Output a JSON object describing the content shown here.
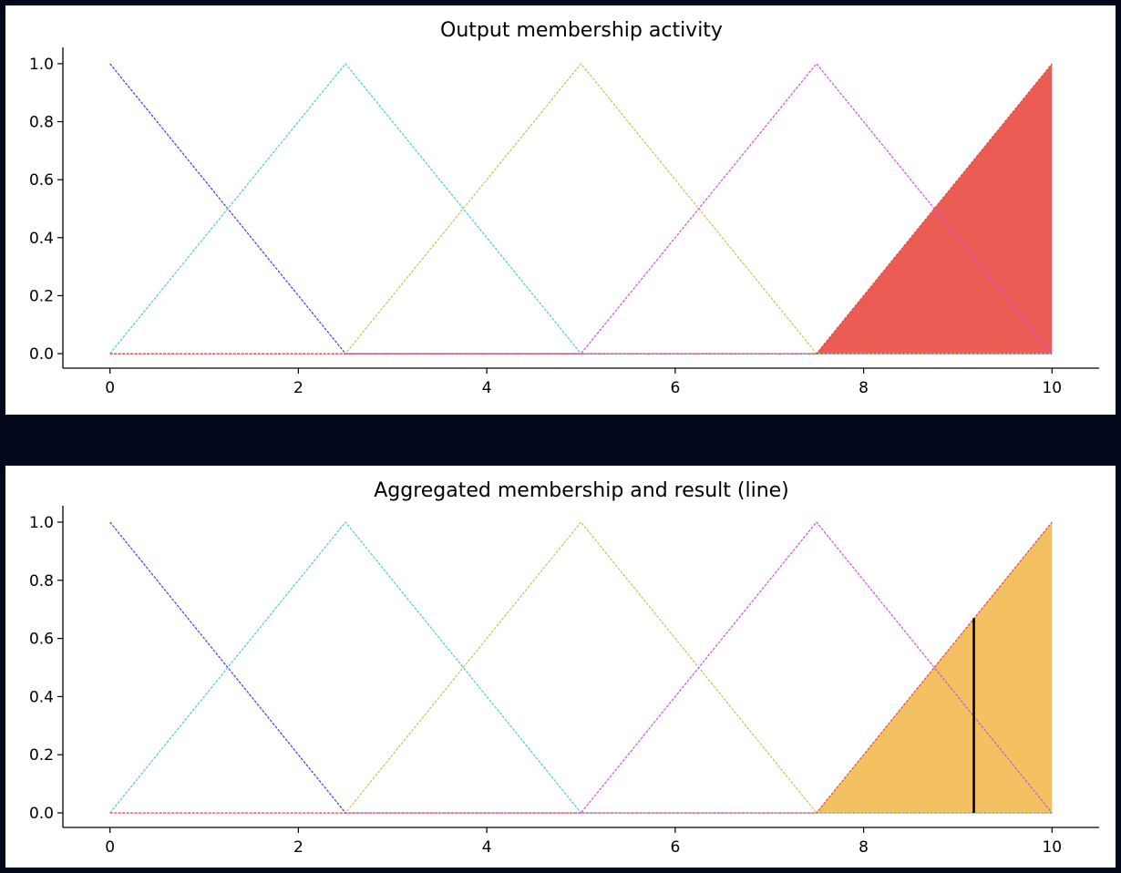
{
  "chart_data": [
    {
      "type": "line",
      "title": "Output membership activity",
      "xlabel": "",
      "ylabel": "",
      "xlim": [
        -0.5,
        10.5
      ],
      "ylim": [
        -0.05,
        1.05
      ],
      "xticks": [
        "0",
        "2",
        "4",
        "6",
        "8",
        "10"
      ],
      "yticks": [
        "0.0",
        "0.2",
        "0.4",
        "0.6",
        "0.8",
        "1.0"
      ],
      "grid": false,
      "series": [
        {
          "color": "#3b3bff",
          "dash": "dashed",
          "x": [
            0,
            2.5,
            10
          ],
          "y": [
            1,
            0,
            0
          ]
        },
        {
          "color": "#4fc9d9",
          "dash": "dashed",
          "x": [
            0,
            2.5,
            5,
            10
          ],
          "y": [
            0,
            1,
            0,
            0
          ]
        },
        {
          "color": "#c9c25a",
          "dash": "dashed",
          "x": [
            0,
            2.5,
            5,
            7.5,
            10
          ],
          "y": [
            0,
            0,
            1,
            0,
            0
          ]
        },
        {
          "color": "#d24ee0",
          "dash": "dashed",
          "x": [
            0,
            5,
            7.5,
            10
          ],
          "y": [
            0,
            0,
            1,
            0
          ]
        },
        {
          "color": "#e8453c",
          "dash": "dashed",
          "x": [
            0,
            7.5,
            10
          ],
          "y": [
            0,
            0,
            1
          ]
        }
      ],
      "fills": [
        {
          "color": "#e8453c",
          "opacity": 0.88,
          "x": [
            7.5,
            10
          ],
          "y": [
            0,
            1
          ]
        }
      ],
      "result_line": null
    },
    {
      "type": "line",
      "title": "Aggregated membership and result (line)",
      "xlabel": "",
      "ylabel": "",
      "xlim": [
        -0.5,
        10.5
      ],
      "ylim": [
        -0.05,
        1.05
      ],
      "xticks": [
        "0",
        "2",
        "4",
        "6",
        "8",
        "10"
      ],
      "yticks": [
        "0.0",
        "0.2",
        "0.4",
        "0.6",
        "0.8",
        "1.0"
      ],
      "grid": false,
      "series": [
        {
          "color": "#3b3bff",
          "dash": "dashed",
          "x": [
            0,
            2.5,
            10
          ],
          "y": [
            1,
            0,
            0
          ]
        },
        {
          "color": "#4fc9d9",
          "dash": "dashed",
          "x": [
            0,
            2.5,
            5,
            10
          ],
          "y": [
            0,
            1,
            0,
            0
          ]
        },
        {
          "color": "#c9c25a",
          "dash": "dashed",
          "x": [
            0,
            2.5,
            5,
            7.5,
            10
          ],
          "y": [
            0,
            0,
            1,
            0,
            0
          ]
        },
        {
          "color": "#d24ee0",
          "dash": "dashed",
          "x": [
            0,
            5,
            7.5,
            10
          ],
          "y": [
            0,
            0,
            1,
            0
          ]
        },
        {
          "color": "#e8453c",
          "dash": "dashed",
          "x": [
            0,
            7.5,
            10
          ],
          "y": [
            0,
            0,
            1
          ]
        }
      ],
      "fills": [
        {
          "color": "#f0a925",
          "opacity": 0.72,
          "x": [
            7.5,
            10
          ],
          "y": [
            0,
            1
          ]
        }
      ],
      "result_line": {
        "x": 9.17,
        "y": [
          0,
          0.67
        ],
        "color": "#000000"
      }
    }
  ]
}
